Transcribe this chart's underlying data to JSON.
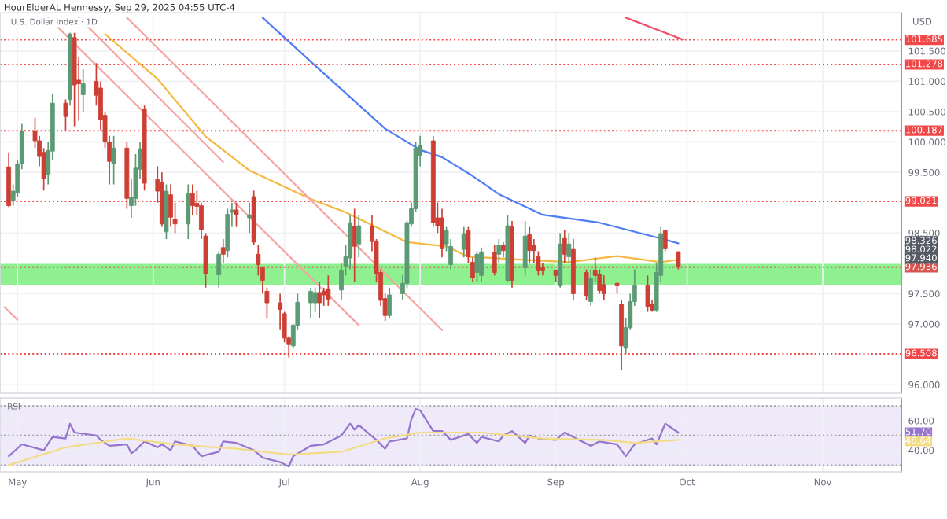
{
  "chart_data": [
    {
      "type": "candlestick",
      "title": "HourElderAL Hennessy, Sep 29, 2025 04:55 UTC-4",
      "subtitle": "U.S. Dollar Index · 1D",
      "ylabel": "USD",
      "x": [
        "2025-04-29",
        "2025-04-30",
        "2025-05-01",
        "2025-05-02",
        "2025-05-05",
        "2025-05-06",
        "2025-05-07",
        "2025-05-08",
        "2025-05-09",
        "2025-05-12",
        "2025-05-13",
        "2025-05-14",
        "2025-05-15",
        "2025-05-16",
        "2025-05-19",
        "2025-05-20",
        "2025-05-21",
        "2025-05-22",
        "2025-05-23",
        "2025-05-26",
        "2025-05-27",
        "2025-05-28",
        "2025-05-29",
        "2025-05-30",
        "2025-06-02",
        "2025-06-03",
        "2025-06-04",
        "2025-06-05",
        "2025-06-06",
        "2025-06-09",
        "2025-06-10",
        "2025-06-11",
        "2025-06-12",
        "2025-06-13",
        "2025-06-16",
        "2025-06-17",
        "2025-06-18",
        "2025-06-19",
        "2025-06-20",
        "2025-06-23",
        "2025-06-24",
        "2025-06-25",
        "2025-06-26",
        "2025-06-27",
        "2025-06-30",
        "2025-07-01",
        "2025-07-02",
        "2025-07-03",
        "2025-07-04",
        "2025-07-07",
        "2025-07-08",
        "2025-07-09",
        "2025-07-10",
        "2025-07-11",
        "2025-07-14",
        "2025-07-15",
        "2025-07-16",
        "2025-07-17",
        "2025-07-18",
        "2025-07-21",
        "2025-07-22",
        "2025-07-23",
        "2025-07-24",
        "2025-07-25",
        "2025-07-28",
        "2025-07-29",
        "2025-07-30",
        "2025-07-31",
        "2025-08-01",
        "2025-08-04",
        "2025-08-05",
        "2025-08-06",
        "2025-08-07",
        "2025-08-08",
        "2025-08-11",
        "2025-08-12",
        "2025-08-13",
        "2025-08-14",
        "2025-08-15",
        "2025-08-18",
        "2025-08-19",
        "2025-08-20",
        "2025-08-21",
        "2025-08-22",
        "2025-08-25",
        "2025-08-26",
        "2025-08-27",
        "2025-08-28",
        "2025-08-29",
        "2025-09-01",
        "2025-09-02",
        "2025-09-03",
        "2025-09-04",
        "2025-09-05",
        "2025-09-08",
        "2025-09-09",
        "2025-09-10",
        "2025-09-11",
        "2025-09-12",
        "2025-09-15",
        "2025-09-16",
        "2025-09-17",
        "2025-09-18",
        "2025-09-19",
        "2025-09-22",
        "2025-09-23",
        "2025-09-24",
        "2025-09-25",
        "2025-09-26",
        "2025-09-29"
      ],
      "ohlc": [
        [
          99.59,
          99.83,
          98.93,
          98.95
        ],
        [
          99.04,
          99.3,
          98.95,
          99.19
        ],
        [
          99.16,
          99.7,
          99.1,
          99.64
        ],
        [
          99.64,
          100.3,
          99.55,
          100.18
        ],
        [
          100.18,
          100.4,
          99.9,
          100.02
        ],
        [
          100.02,
          100.1,
          99.6,
          99.76
        ],
        [
          99.83,
          99.9,
          99.2,
          99.4
        ],
        [
          99.47,
          100.0,
          99.3,
          99.86
        ],
        [
          99.85,
          100.8,
          99.7,
          100.64
        ],
        [
          100.64,
          100.7,
          100.2,
          100.42
        ],
        [
          100.7,
          101.8,
          100.6,
          101.78
        ],
        [
          101.72,
          101.8,
          100.26,
          100.94
        ],
        [
          101.02,
          101.4,
          100.35,
          100.96
        ],
        [
          100.78,
          101.2,
          100.5,
          100.96
        ],
        [
          101.0,
          101.3,
          100.6,
          100.77
        ],
        [
          100.89,
          101.0,
          100.2,
          100.37
        ],
        [
          100.44,
          100.5,
          99.9,
          100.0
        ],
        [
          100.0,
          100.1,
          99.3,
          99.68
        ],
        [
          99.64,
          100.1,
          99.3,
          99.9
        ],
        [
          99.9,
          100.0,
          98.9,
          99.07
        ],
        [
          98.95,
          99.4,
          98.75,
          99.09
        ],
        [
          99.07,
          99.8,
          98.95,
          99.57
        ],
        [
          99.55,
          100.0,
          99.4,
          99.89
        ],
        [
          100.54,
          100.6,
          99.2,
          99.32
        ],
        [
          99.38,
          99.6,
          99.0,
          99.19
        ],
        [
          99.34,
          99.5,
          98.6,
          98.65
        ],
        [
          98.52,
          99.3,
          98.4,
          99.19
        ],
        [
          99.13,
          99.3,
          98.6,
          98.76
        ],
        [
          98.73,
          99.0,
          98.5,
          98.65
        ],
        [
          98.65,
          99.3,
          98.4,
          99.15
        ],
        [
          99.15,
          99.3,
          98.8,
          98.95
        ],
        [
          98.99,
          99.2,
          98.8,
          98.94
        ],
        [
          98.95,
          99.0,
          98.4,
          98.55
        ],
        [
          98.45,
          98.5,
          97.6,
          97.83
        ],
        [
          97.81,
          98.2,
          97.6,
          98.15
        ],
        [
          98.26,
          98.4,
          98.0,
          98.15
        ],
        [
          98.21,
          98.9,
          98.1,
          98.81
        ],
        [
          98.84,
          99.0,
          98.6,
          98.88
        ],
        [
          98.88,
          99.0,
          98.6,
          98.8
        ],
        [
          98.75,
          99.0,
          98.5,
          98.8
        ],
        [
          99.1,
          99.2,
          98.3,
          98.35
        ],
        [
          98.15,
          98.3,
          97.8,
          97.98
        ],
        [
          97.93,
          97.95,
          97.5,
          97.72
        ],
        [
          97.54,
          97.6,
          97.1,
          97.35
        ],
        [
          97.35,
          97.5,
          96.9,
          97.24
        ],
        [
          97.17,
          97.2,
          96.7,
          96.77
        ],
        [
          96.77,
          96.8,
          96.45,
          96.66
        ],
        [
          96.64,
          97.0,
          96.6,
          96.98
        ],
        [
          96.98,
          97.5,
          96.9,
          97.36
        ],
        [
          97.35,
          97.6,
          97.1,
          97.54
        ],
        [
          97.35,
          97.6,
          97.2,
          97.52
        ],
        [
          97.52,
          97.7,
          97.1,
          97.35
        ],
        [
          97.54,
          97.6,
          97.3,
          97.48
        ],
        [
          97.58,
          97.8,
          97.3,
          97.41
        ],
        [
          97.56,
          98.0,
          97.4,
          97.89
        ],
        [
          97.95,
          98.3,
          97.8,
          98.11
        ],
        [
          98.09,
          98.8,
          97.9,
          98.67
        ],
        [
          98.61,
          98.9,
          97.7,
          98.28
        ],
        [
          98.32,
          98.8,
          98.1,
          98.62
        ],
        [
          98.62,
          98.8,
          98.2,
          98.36
        ],
        [
          98.36,
          98.4,
          97.7,
          97.83
        ],
        [
          97.85,
          97.9,
          97.3,
          97.39
        ],
        [
          97.42,
          97.5,
          97.05,
          97.14
        ],
        [
          97.14,
          97.6,
          97.1,
          97.48
        ],
        [
          97.5,
          97.8,
          97.4,
          97.67
        ],
        [
          97.67,
          98.7,
          97.6,
          98.67
        ],
        [
          98.65,
          99.0,
          98.6,
          98.9
        ],
        [
          98.9,
          100.0,
          98.85,
          99.9
        ],
        [
          99.78,
          100.1,
          99.6,
          99.95
        ],
        [
          100.02,
          100.1,
          98.6,
          98.67
        ],
        [
          98.75,
          99.0,
          98.5,
          98.62
        ],
        [
          98.75,
          98.9,
          98.1,
          98.24
        ],
        [
          98.32,
          98.6,
          98.2,
          98.54
        ],
        [
          97.98,
          98.4,
          97.9,
          98.28
        ],
        [
          98.23,
          98.6,
          98.1,
          98.49
        ],
        [
          98.54,
          98.6,
          98.0,
          98.11
        ],
        [
          98.02,
          98.1,
          97.7,
          97.76
        ],
        [
          97.85,
          98.2,
          97.7,
          98.15
        ],
        [
          97.8,
          98.25,
          97.7,
          98.19
        ],
        [
          98.18,
          98.3,
          97.8,
          97.85
        ],
        [
          98.15,
          98.4,
          98.0,
          98.3
        ],
        [
          98.3,
          98.35,
          98.1,
          98.21
        ],
        [
          97.72,
          98.8,
          97.7,
          98.62
        ],
        [
          98.6,
          98.7,
          97.6,
          97.72
        ],
        [
          97.93,
          98.7,
          97.8,
          98.45
        ],
        [
          98.47,
          98.6,
          98.0,
          98.21
        ],
        [
          98.3,
          98.4,
          98.0,
          98.21
        ],
        [
          98.11,
          98.2,
          97.8,
          97.89
        ],
        [
          97.93,
          98.0,
          97.8,
          97.89
        ],
        [
          97.89,
          97.9,
          97.7,
          97.8
        ],
        [
          97.63,
          98.5,
          97.6,
          98.32
        ],
        [
          98.41,
          98.55,
          98.0,
          98.15
        ],
        [
          98.11,
          98.5,
          98.0,
          98.32
        ],
        [
          98.23,
          98.4,
          97.4,
          97.5
        ],
        [
          97.85,
          97.9,
          97.4,
          97.46
        ],
        [
          97.37,
          97.9,
          97.3,
          97.76
        ],
        [
          97.89,
          98.1,
          97.7,
          97.8
        ],
        [
          97.82,
          97.9,
          97.5,
          97.55
        ],
        [
          97.65,
          97.8,
          97.4,
          97.5
        ],
        [
          97.67,
          97.7,
          97.5,
          97.63
        ],
        [
          97.33,
          97.4,
          96.25,
          96.64
        ],
        [
          96.6,
          97.1,
          96.5,
          96.94
        ],
        [
          96.94,
          97.5,
          96.9,
          97.37
        ],
        [
          97.37,
          97.9,
          97.3,
          97.63
        ],
        [
          97.63,
          97.8,
          97.2,
          97.29
        ],
        [
          97.33,
          97.4,
          97.2,
          97.23
        ],
        [
          97.23,
          98.0,
          97.2,
          97.85
        ],
        [
          97.8,
          98.6,
          97.7,
          98.49
        ],
        [
          98.54,
          98.55,
          98.2,
          98.24
        ],
        [
          98.19,
          98.2,
          97.9,
          97.94
        ]
      ],
      "colors": [
        "#cd3f35",
        "#5b9a74",
        "#5b9a74",
        "#5b9a74",
        "#cd3f35",
        "#cd3f35",
        "#cd3f35",
        "#5b9a74",
        "#5b9a74",
        "#cd3f35",
        "#5b9a74",
        "#cd3f35",
        "#cd3f35",
        "#5b9a74",
        "#cd3f35",
        "#cd3f35",
        "#cd3f35",
        "#cd3f35",
        "#5b9a74",
        "#cd3f35",
        "#5b9a74",
        "#5b9a74",
        "#5b9a74",
        "#cd3f35",
        "#cd3f35",
        "#cd3f35",
        "#5b9a74",
        "#cd3f35",
        "#cd3f35",
        "#5b9a74",
        "#cd3f35",
        "#cd3f35",
        "#cd3f35",
        "#cd3f35",
        "#5b9a74",
        "#cd3f35",
        "#5b9a74",
        "#5b9a74",
        "#cd3f35",
        "#5b9a74",
        "#cd3f35",
        "#cd3f35",
        "#cd3f35",
        "#cd3f35",
        "#cd3f35",
        "#cd3f35",
        "#cd3f35",
        "#5b9a74",
        "#5b9a74",
        "#5b9a74",
        "#5b9a74",
        "#cd3f35",
        "#cd3f35",
        "#cd3f35",
        "#5b9a74",
        "#5b9a74",
        "#5b9a74",
        "#cd3f35",
        "#5b9a74",
        "#cd3f35",
        "#cd3f35",
        "#cd3f35",
        "#cd3f35",
        "#5b9a74",
        "#5b9a74",
        "#5b9a74",
        "#5b9a74",
        "#5b9a74",
        "#5b9a74",
        "#cd3f35",
        "#cd3f35",
        "#cd3f35",
        "#5b9a74",
        "#5b9a74",
        "#5b9a74",
        "#cd3f35",
        "#cd3f35",
        "#5b9a74",
        "#5b9a74",
        "#cd3f35",
        "#5b9a74",
        "#cd3f35",
        "#5b9a74",
        "#cd3f35",
        "#5b9a74",
        "#cd3f35",
        "#cd3f35",
        "#cd3f35",
        "#cd3f35",
        "#cd3f35",
        "#5b9a74",
        "#cd3f35",
        "#5b9a74",
        "#cd3f35",
        "#cd3f35",
        "#5b9a74",
        "#cd3f35",
        "#cd3f35",
        "#cd3f35",
        "#cd3f35",
        "#cd3f35",
        "#5b9a74",
        "#5b9a74",
        "#5b9a74",
        "#cd3f35",
        "#cd3f35",
        "#5b9a74",
        "#5b9a74",
        "#cd3f35",
        "#cd3f35"
      ],
      "series": [
        {
          "type": "line",
          "color": "#4f7df5",
          "x": [
            "2025-06-26",
            "2025-07-08",
            "2025-07-24",
            "2025-08-01",
            "2025-08-06",
            "2025-08-13",
            "2025-08-19",
            "2025-08-29",
            "2025-09-11",
            "2025-09-25",
            "2025-09-29"
          ],
          "values": [
            102.05,
            101.26,
            100.22,
            99.87,
            99.75,
            99.44,
            99.14,
            98.8,
            98.67,
            98.41,
            98.33
          ]
        },
        {
          "type": "line",
          "color": "#f5b942",
          "x": [
            "2025-05-21",
            "2025-06-02",
            "2025-06-13",
            "2025-06-23",
            "2025-07-07",
            "2025-07-15",
            "2025-07-29",
            "2025-08-07",
            "2025-08-12",
            "2025-08-25",
            "2025-09-04",
            "2025-09-15",
            "2025-09-25",
            "2025-09-29"
          ],
          "values": [
            101.78,
            101.04,
            100.09,
            99.53,
            99.06,
            98.84,
            98.35,
            98.28,
            98.11,
            98.06,
            98.02,
            98.12,
            98.02,
            98.06
          ]
        },
        {
          "type": "line",
          "color": "#f6a5a5",
          "x": [
            "2025-05-08",
            "2025-07-18"
          ],
          "values": [
            102.05,
            96.98
          ]
        },
        {
          "type": "line",
          "color": "#f6a5a5",
          "x": [
            "2025-05-15",
            "2025-06-17"
          ],
          "values": [
            102.05,
            99.67
          ]
        },
        {
          "type": "line",
          "color": "#f6a5a5",
          "x": [
            "2025-05-26",
            "2025-08-06"
          ],
          "values": [
            102.05,
            96.9
          ]
        },
        {
          "type": "line",
          "color": "#f6a5a5",
          "x": [
            "2025-04-28",
            "2025-05-01"
          ],
          "values": [
            97.28,
            97.07
          ]
        },
        {
          "type": "line",
          "color": "#f0506e",
          "x": [
            "2025-09-17",
            "2025-09-30"
          ],
          "values": [
            102.05,
            101.69
          ]
        }
      ],
      "xlim": [
        "2025-04-27",
        "2025-11-19"
      ],
      "xticks": [
        {
          "value": "2025-05-01",
          "label": null
        },
        {
          "value": "2025-06-01",
          "label": null
        },
        {
          "value": "2025-07-01",
          "label": null
        },
        {
          "value": "2025-08-01",
          "label": null
        },
        {
          "value": "2025-09-01",
          "label": null
        },
        {
          "value": "2025-10-01",
          "label": null
        },
        {
          "value": "2025-11-01",
          "label": null
        }
      ],
      "ylim": [
        95.86,
        102.13
      ],
      "yticks": [
        {
          "value": 96,
          "label": "96.000"
        },
        {
          "value": 97,
          "label": "97.000"
        },
        {
          "value": 97.5,
          "label": "97.500"
        },
        {
          "value": 98.5,
          "label": "98.500"
        },
        {
          "value": 99.5,
          "label": "99.500"
        },
        {
          "value": 100,
          "label": "100.000"
        },
        {
          "value": 100.5,
          "label": "100.500"
        },
        {
          "value": 101,
          "label": "101.000"
        },
        {
          "value": 101.5,
          "label": "101.500"
        }
      ],
      "tick_labels": "y",
      "grid": true,
      "ref_lines": [
        {
          "axis": "y",
          "value": 101.685,
          "label": "101.685",
          "color": "#f04848",
          "line_style": "dotted"
        },
        {
          "axis": "y",
          "value": 101.278,
          "label": "101.278",
          "color": "#f04848",
          "line_style": "dotted"
        },
        {
          "axis": "y",
          "value": 100.187,
          "label": "100.187",
          "color": "#f04848",
          "line_style": "dotted"
        },
        {
          "axis": "y",
          "value": 99.021,
          "label": "99.021",
          "color": "#f04848",
          "line_style": "dotted"
        },
        {
          "axis": "y",
          "value": 96.508,
          "label": "96.508",
          "color": "#f04848",
          "line_style": "dotted"
        },
        {
          "axis": "y",
          "value": 97.936,
          "label": "97.936",
          "color": "#d9534f",
          "line_style": "dotted"
        }
      ],
      "bands": [
        {
          "axis": "y",
          "from": 97.65,
          "to": 97.98,
          "color": "#8ef08e"
        }
      ],
      "annotations": [
        "98.326",
        "98.022",
        "97.940"
      ]
    },
    {
      "type": "line",
      "title": "RSI",
      "series": [
        {
          "color": "#9575cd",
          "x": [
            "2025-04-29",
            "2025-05-02",
            "2025-05-07",
            "2025-05-09",
            "2025-05-12",
            "2025-05-13",
            "2025-05-14",
            "2025-05-19",
            "2025-05-20",
            "2025-05-22",
            "2025-05-26",
            "2025-05-27",
            "2025-05-28",
            "2025-05-30",
            "2025-06-02",
            "2025-06-03",
            "2025-06-05",
            "2025-06-06",
            "2025-06-10",
            "2025-06-12",
            "2025-06-16",
            "2025-06-17",
            "2025-06-20",
            "2025-06-24",
            "2025-06-26",
            "2025-06-30",
            "2025-07-02",
            "2025-07-03",
            "2025-07-07",
            "2025-07-10",
            "2025-07-14",
            "2025-07-16",
            "2025-07-17",
            "2025-07-18",
            "2025-07-22",
            "2025-07-24",
            "2025-07-25",
            "2025-07-29",
            "2025-07-30",
            "2025-07-31",
            "2025-08-01",
            "2025-08-04",
            "2025-08-06",
            "2025-08-08",
            "2025-08-12",
            "2025-08-14",
            "2025-08-15",
            "2025-08-19",
            "2025-08-20",
            "2025-08-22",
            "2025-08-25",
            "2025-08-26",
            "2025-08-28",
            "2025-09-01",
            "2025-09-03",
            "2025-09-05",
            "2025-09-09",
            "2025-09-11",
            "2025-09-15",
            "2025-09-17",
            "2025-09-19",
            "2025-09-23",
            "2025-09-24",
            "2025-09-26",
            "2025-09-29"
          ],
          "values": [
            36,
            44,
            40,
            49,
            48,
            58,
            52,
            50,
            47,
            43,
            44,
            38,
            40,
            46,
            42,
            44,
            40,
            46,
            43,
            36,
            39,
            46,
            45,
            40,
            35,
            32,
            29,
            36,
            43,
            44,
            50,
            58,
            54,
            57,
            47,
            41,
            46,
            48,
            61,
            68,
            67,
            53,
            53,
            47,
            51,
            45,
            49,
            46,
            50,
            53,
            45,
            50,
            48,
            47,
            52,
            49,
            43,
            46,
            44,
            36,
            44,
            48,
            44,
            58,
            52
          ]
        },
        {
          "color": "#f3dc86",
          "x": [
            "2025-04-29",
            "2025-05-12",
            "2025-05-26",
            "2025-06-06",
            "2025-06-20",
            "2025-07-02",
            "2025-07-14",
            "2025-07-24",
            "2025-08-01",
            "2025-08-15",
            "2025-08-29",
            "2025-09-12",
            "2025-09-19",
            "2025-09-29"
          ],
          "values": [
            30,
            42,
            48,
            44,
            41,
            37,
            39,
            48,
            52,
            52,
            48,
            47,
            45,
            47
          ]
        }
      ],
      "xlim": [
        "2025-04-27",
        "2025-11-19"
      ],
      "xticks": [
        {
          "value": "2025-05-01",
          "label": "May"
        },
        {
          "value": "2025-06-01",
          "label": "Jun"
        },
        {
          "value": "2025-07-01",
          "label": "Jul"
        },
        {
          "value": "2025-08-01",
          "label": "Aug"
        },
        {
          "value": "2025-09-01",
          "label": "Sep"
        },
        {
          "value": "2025-10-01",
          "label": "Oct"
        },
        {
          "value": "2025-11-01",
          "label": "Nov"
        }
      ],
      "ylim": [
        25.4,
        75.4
      ],
      "yticks": [
        {
          "value": 60,
          "label": "60.00"
        },
        {
          "value": 40,
          "label": "40.00"
        }
      ],
      "grid": true,
      "ref_lines": [
        {
          "axis": "y",
          "value": 70,
          "color": "#9e9e9e",
          "line_style": "dotted"
        },
        {
          "axis": "y",
          "value": 50,
          "color": "#9e9e9e",
          "line_style": "dotted"
        },
        {
          "axis": "y",
          "value": 30,
          "color": "#9e9e9e",
          "line_style": "dotted"
        }
      ],
      "bands": [
        {
          "axis": "y",
          "from": 30,
          "to": 70,
          "color": "#efeafa"
        }
      ],
      "annotations": [
        "51.70",
        "46.64"
      ]
    }
  ]
}
